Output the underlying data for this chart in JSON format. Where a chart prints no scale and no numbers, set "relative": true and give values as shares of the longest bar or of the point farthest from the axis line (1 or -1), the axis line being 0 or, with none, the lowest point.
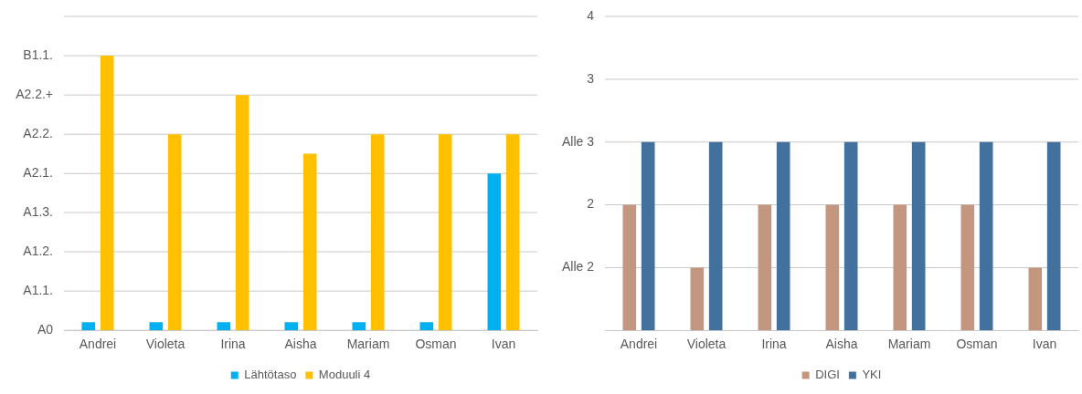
{
  "chart_data": [
    {
      "type": "bar",
      "relative": true,
      "categories": [
        "Andrei",
        "Violeta",
        "Irina",
        "Aisha",
        "Mariam",
        "Osman",
        "Ivan"
      ],
      "series": [
        {
          "name": "Lähtötaso",
          "color": "#00b0f0",
          "values": [
            0.03,
            0.03,
            0.03,
            0.03,
            0.03,
            0.03,
            0.571
          ]
        },
        {
          "name": "Moduuli 4",
          "color": "#ffc000",
          "values": [
            1,
            0.714,
            0.857,
            0.643,
            0.714,
            0.714,
            0.714
          ]
        }
      ],
      "ref_lines": [
        {
          "axis": "y",
          "value": 0,
          "label": "A0",
          "color": "#c8c8c8"
        },
        {
          "axis": "y",
          "value": 0.143,
          "label": "A1.1.",
          "color": "#c8c8c8"
        },
        {
          "axis": "y",
          "value": 0.286,
          "label": "A1.2.",
          "color": "#c8c8c8"
        },
        {
          "axis": "y",
          "value": 0.429,
          "label": "A1.3.",
          "color": "#c8c8c8"
        },
        {
          "axis": "y",
          "value": 0.571,
          "label": "A2.1.",
          "color": "#c8c8c8"
        },
        {
          "axis": "y",
          "value": 0.714,
          "label": "A2.2.",
          "color": "#c8c8c8"
        },
        {
          "axis": "y",
          "value": 0.857,
          "label": "A2.2.+",
          "color": "#c8c8c8"
        },
        {
          "axis": "y",
          "value": 1,
          "label": "B1.1.",
          "color": "#c8c8c8"
        },
        {
          "axis": "y",
          "value": 1.143,
          "label": null,
          "color": "#c8c8c8"
        }
      ],
      "legend": "bottom"
    },
    {
      "type": "bar",
      "relative": true,
      "categories": [
        "Andrei",
        "Violeta",
        "Irina",
        "Aisha",
        "Mariam",
        "Osman",
        "Ivan"
      ],
      "series": [
        {
          "name": "DIGI",
          "color": "#c3967f",
          "values": [
            0.667,
            0.333,
            0.667,
            0.667,
            0.667,
            0.667,
            0.333
          ]
        },
        {
          "name": "YKI",
          "color": "#41719c",
          "values": [
            1,
            1,
            1,
            1,
            1,
            1,
            1
          ]
        }
      ],
      "ref_lines": [
        {
          "axis": "y",
          "value": 0.333,
          "label": null,
          "color": "#c8c8c8"
        },
        {
          "axis": "y",
          "value": 0.667,
          "label": null,
          "color": "#c8c8c8"
        },
        {
          "axis": "y",
          "value": 1,
          "label": null,
          "color": "#c8c8c8"
        },
        {
          "axis": "y",
          "value": 1.333,
          "label": null,
          "color": "#c8c8c8"
        },
        {
          "axis": "y",
          "value": 1.667,
          "label": null,
          "color": "#c8c8c8"
        }
      ],
      "annotations": [
        "Alle 2",
        "2",
        "Alle 3",
        "3",
        "4"
      ],
      "legend": "bottom"
    }
  ]
}
